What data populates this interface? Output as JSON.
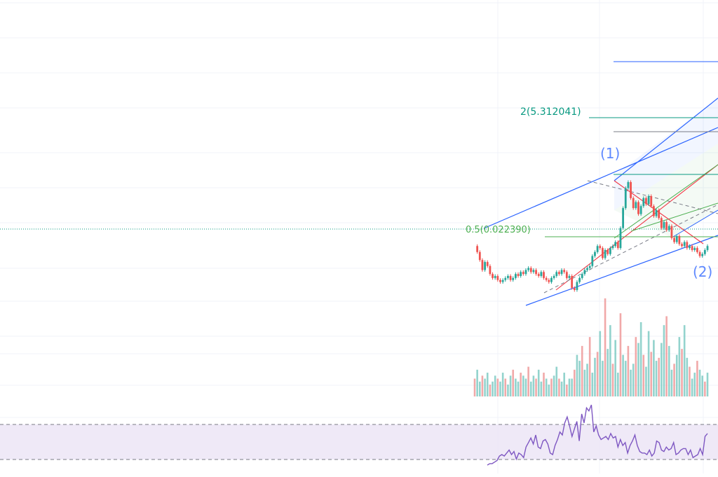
{
  "chart_data": {
    "type": "line",
    "title": "",
    "xlabel": "",
    "ylabel": "",
    "grid": true,
    "price": {
      "values": [
        0.0226,
        0.0223,
        0.0219,
        0.0214,
        0.0218,
        0.0216,
        0.0212,
        0.021,
        0.0211,
        0.0209,
        0.0208,
        0.0209,
        0.021,
        0.0211,
        0.0209,
        0.021,
        0.0212,
        0.0211,
        0.0213,
        0.0212,
        0.0214,
        0.0215,
        0.0213,
        0.0214,
        0.0212,
        0.0211,
        0.0213,
        0.021,
        0.0209,
        0.0208,
        0.021,
        0.0211,
        0.0213,
        0.0212,
        0.0214,
        0.0213,
        0.021,
        0.0211,
        0.0205,
        0.0204,
        0.0208,
        0.021,
        0.0212,
        0.0214,
        0.0215,
        0.0216,
        0.0221,
        0.0223,
        0.0226,
        0.0225,
        0.022,
        0.0224,
        0.0222,
        0.0225,
        0.0226,
        0.0228,
        0.0225,
        0.0235,
        0.0245,
        0.0255,
        0.0258,
        0.025,
        0.0245,
        0.0248,
        0.0242,
        0.0246,
        0.025,
        0.0247,
        0.0251,
        0.0246,
        0.0241,
        0.0244,
        0.024,
        0.0235,
        0.0238,
        0.0234,
        0.0236,
        0.023,
        0.0228,
        0.0231,
        0.0227,
        0.0226,
        0.0228,
        0.0225,
        0.0226,
        0.0224,
        0.0225,
        0.0223,
        0.0221,
        0.0222,
        0.0224,
        0.0226
      ],
      "color_up": "#26a69a",
      "color_down": "#ef5350"
    },
    "volume": {
      "values": [
        6,
        9,
        5,
        7,
        6,
        8,
        4,
        5,
        7,
        6,
        5,
        8,
        6,
        4,
        7,
        9,
        6,
        5,
        8,
        7,
        6,
        10,
        5,
        7,
        6,
        9,
        5,
        8,
        6,
        4,
        6,
        7,
        10,
        6,
        5,
        8,
        4,
        6,
        6,
        9,
        14,
        12,
        17,
        9,
        11,
        20,
        8,
        13,
        15,
        22,
        12,
        33,
        16,
        24,
        11,
        19,
        8,
        28,
        14,
        12,
        17,
        9,
        11,
        20,
        18,
        25,
        14,
        10,
        22,
        15,
        19,
        12,
        13,
        18,
        24,
        27,
        17,
        9,
        11,
        14,
        20,
        16,
        24,
        13,
        10,
        6,
        8,
        12,
        9,
        7,
        5,
        8
      ],
      "color": "#26a69a"
    },
    "indicator": {
      "values": [
        2,
        3,
        3,
        4,
        5,
        8,
        9,
        8,
        10,
        12,
        9,
        11,
        6,
        10,
        9,
        7,
        14,
        17,
        20,
        16,
        22,
        14,
        13,
        18,
        19,
        16,
        10,
        9,
        15,
        19,
        24,
        22,
        30,
        34,
        28,
        21,
        26,
        31,
        18,
        36,
        30,
        40,
        38,
        42,
        24,
        28,
        22,
        19,
        20,
        21,
        19,
        23,
        20,
        21,
        14,
        19,
        15,
        17,
        10,
        15,
        18,
        22,
        15,
        11,
        10,
        10,
        9,
        12,
        8,
        10,
        18,
        17,
        12,
        11,
        14,
        12,
        13,
        17,
        9,
        10,
        12,
        13,
        13,
        9,
        12,
        7,
        8,
        9,
        13,
        9,
        21,
        23
      ],
      "upper_band": 70,
      "lower_band": 30,
      "line_color": "#7e57c2",
      "band_color": "#ede7f6"
    },
    "annotations": {
      "wave_1": "(1)",
      "wave_2": "(2)",
      "fib_2": "2(5.312041)",
      "fib_05": "0.5(0.022390)"
    }
  }
}
